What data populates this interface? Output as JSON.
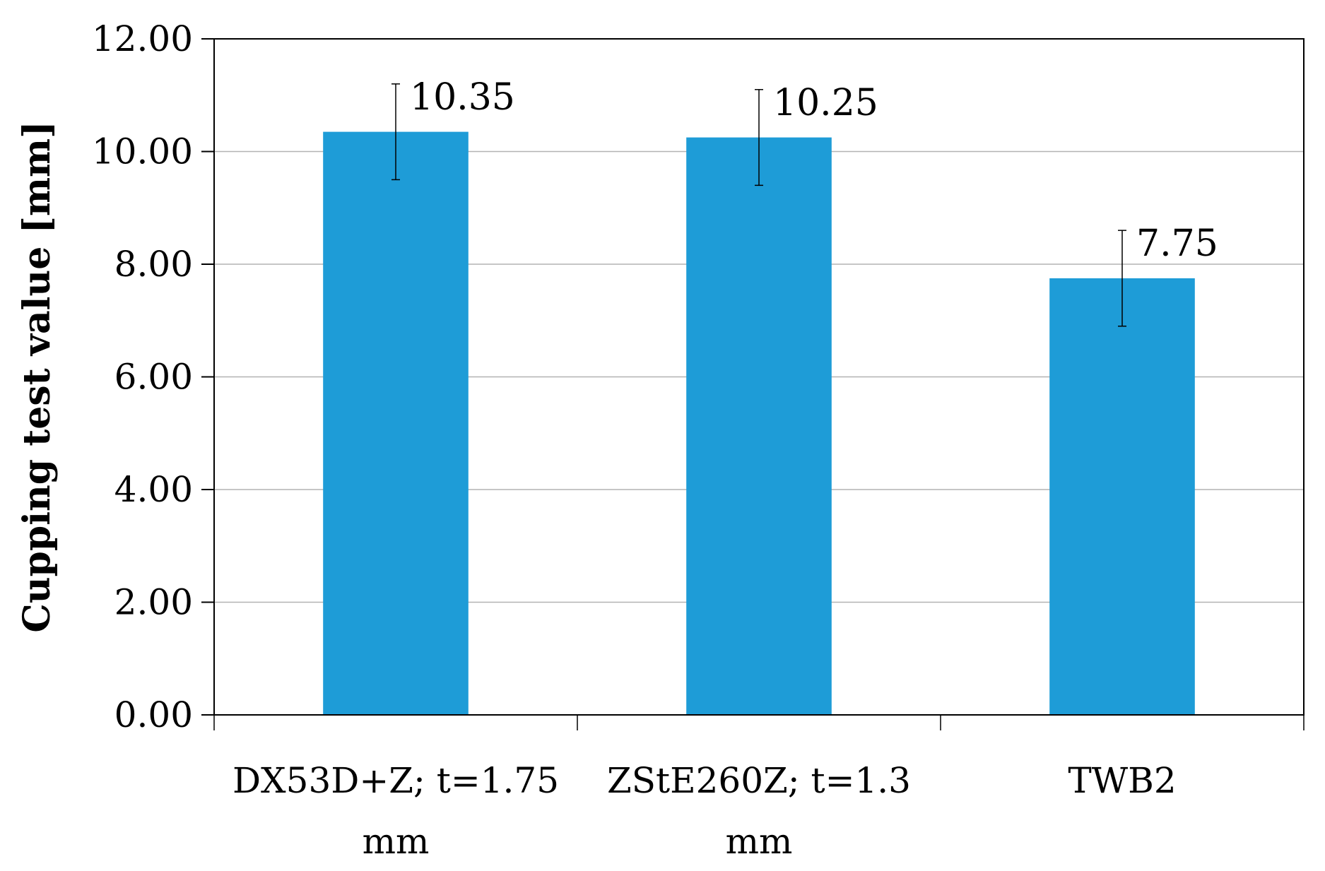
{
  "chart_data": {
    "type": "bar",
    "categories": [
      [
        "DX53D+Z; t=1.75",
        "mm"
      ],
      [
        "ZStE260Z; t=1.3",
        "mm"
      ],
      [
        "TWB2"
      ]
    ],
    "values": [
      10.35,
      10.25,
      7.75
    ],
    "error": [
      0.85,
      0.85,
      0.85
    ],
    "data_labels": [
      "10.35",
      "10.25",
      "7.75"
    ],
    "title": "",
    "xlabel": "",
    "ylabel": "Cupping test value [mm]",
    "ylim": [
      0,
      12
    ],
    "yticks": [
      0,
      2,
      4,
      6,
      8,
      10,
      12
    ],
    "ytick_labels": [
      "0.00",
      "2.00",
      "4.00",
      "6.00",
      "8.00",
      "10.00",
      "12.00"
    ],
    "grid": true,
    "bar_color": "#1e9cd7"
  }
}
